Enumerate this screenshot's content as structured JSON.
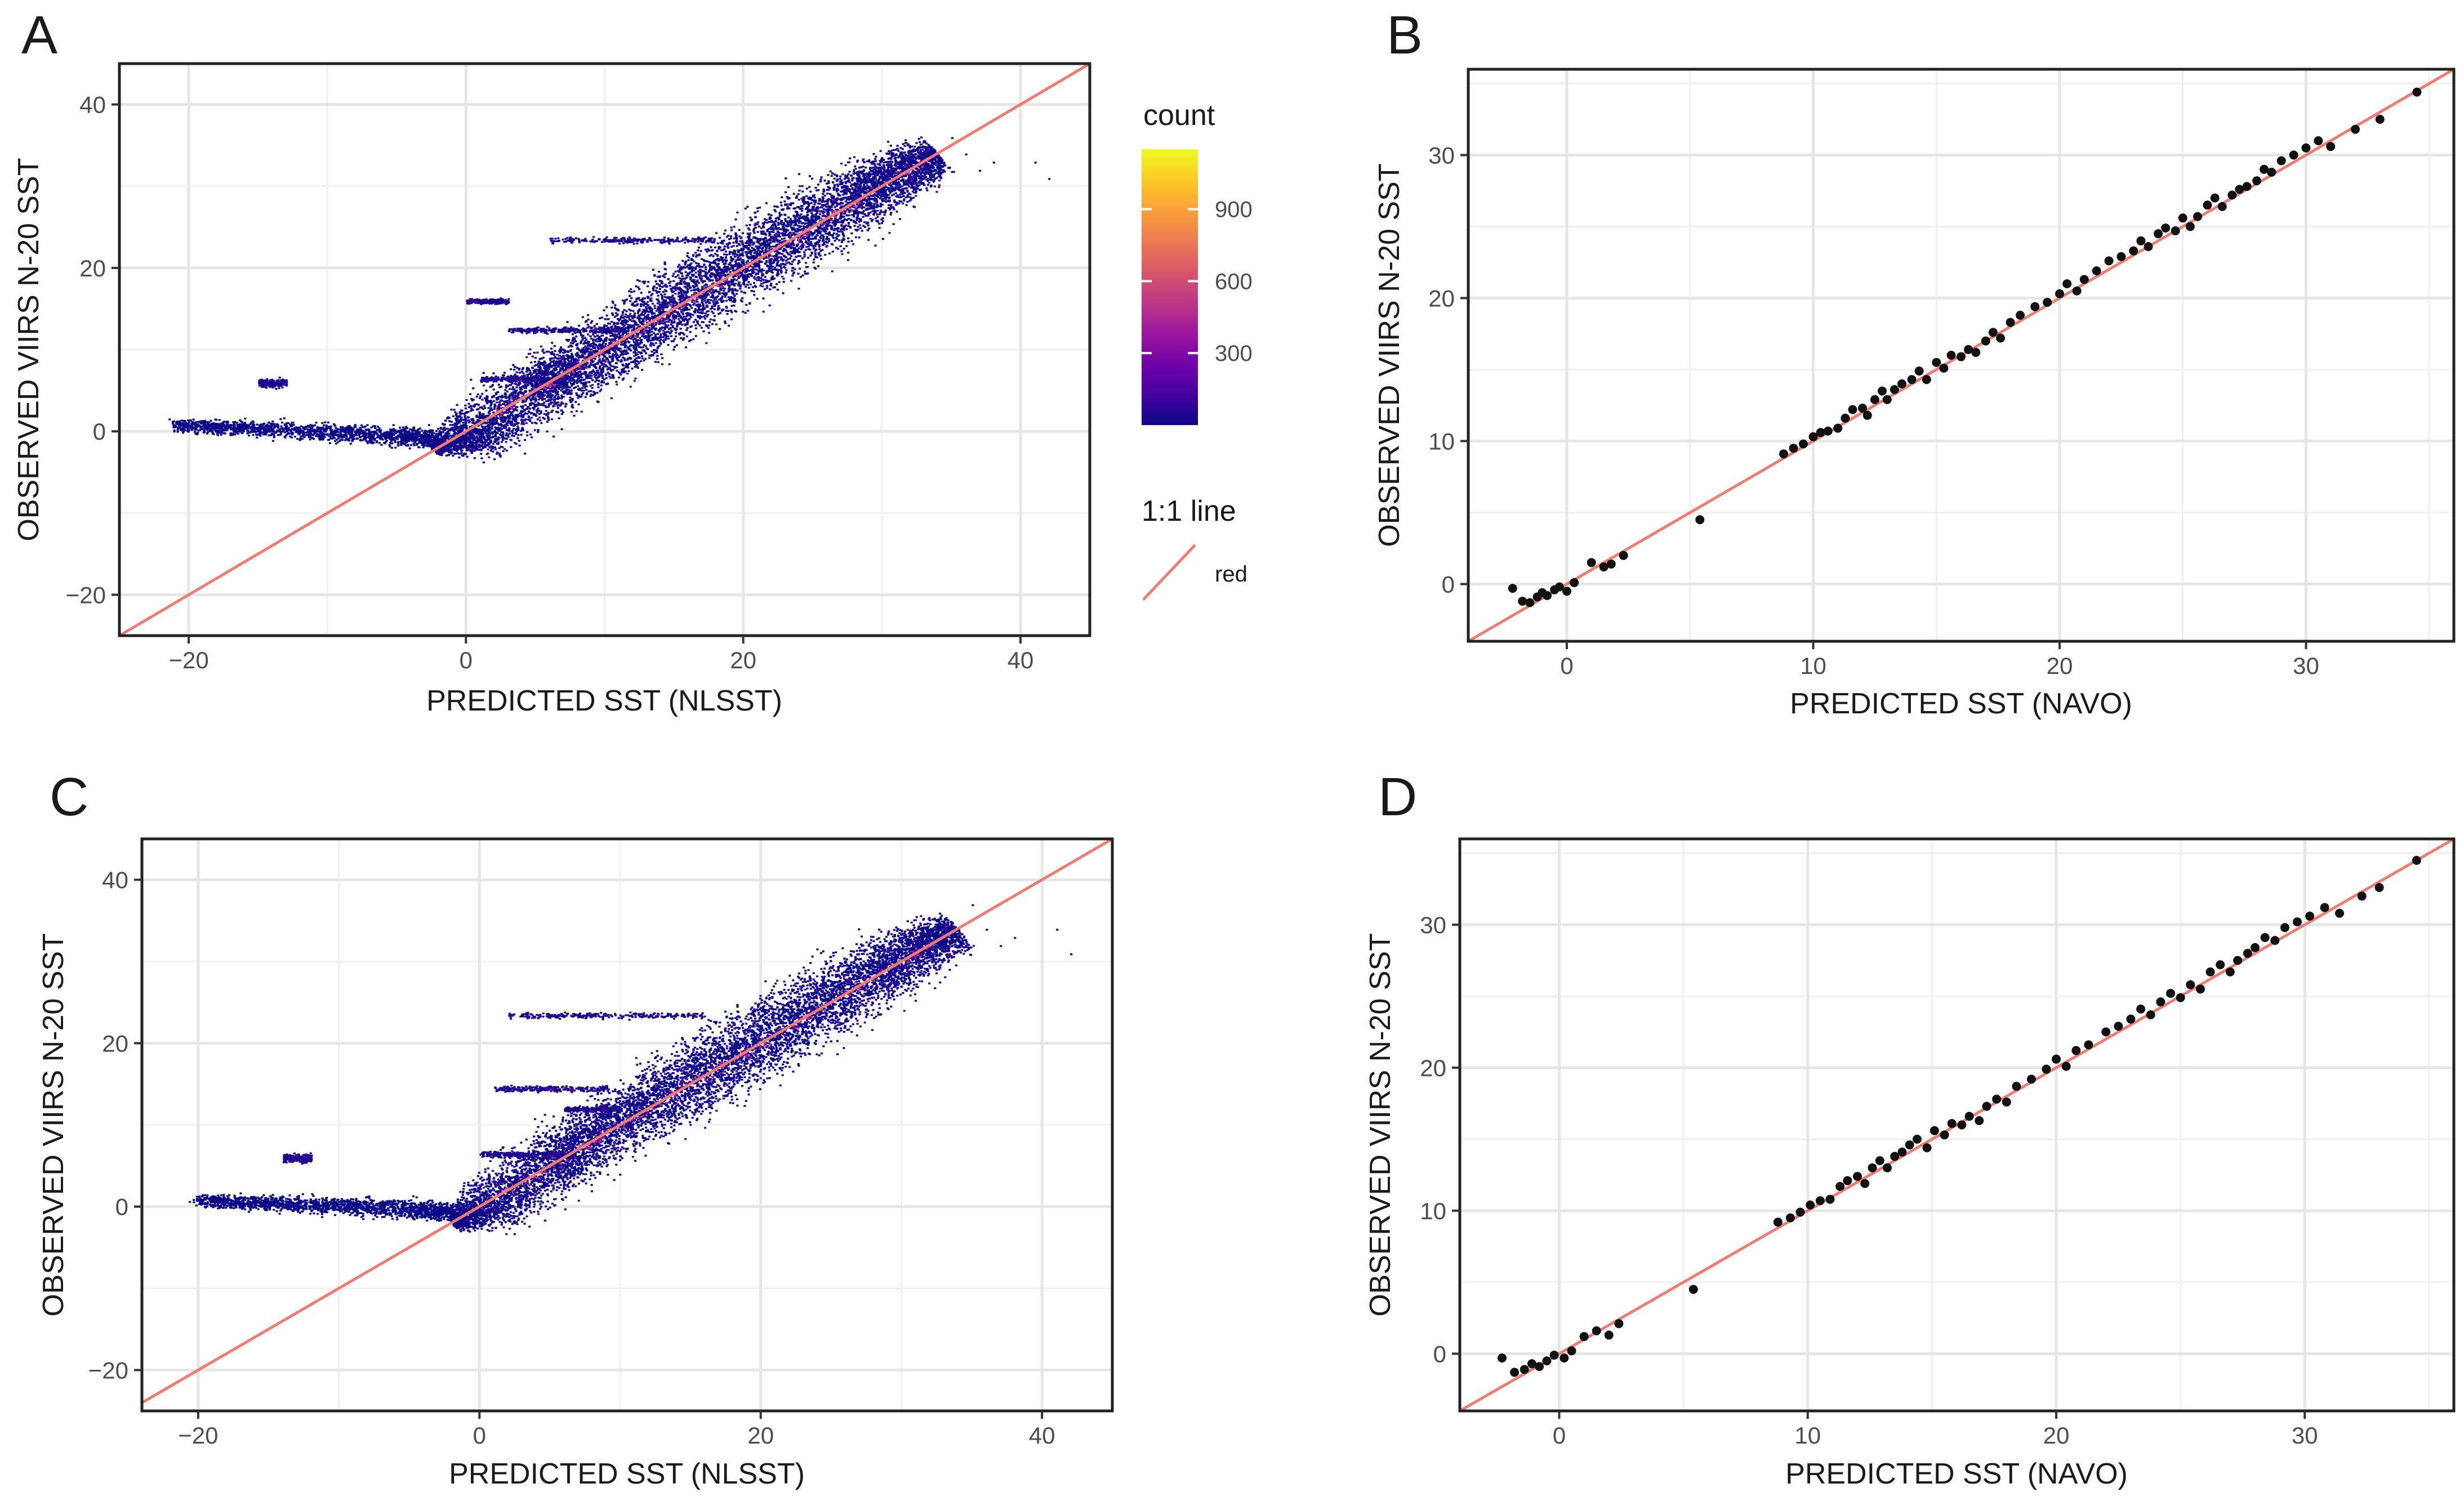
{
  "figure": {
    "panels": [
      {
        "letter": "A"
      },
      {
        "letter": "B"
      },
      {
        "letter": "C"
      },
      {
        "letter": "D"
      }
    ],
    "legend": {
      "count_title": "count",
      "count_ticks": [
        "900",
        "600",
        "300"
      ],
      "count_tick_values": [
        900,
        600,
        300
      ],
      "count_range": [
        0,
        1150
      ],
      "line_title": "1:1 line",
      "line_label": "red",
      "colors": {
        "gradient": [
          "#0d0887",
          "#46039f",
          "#7201a8",
          "#9c179e",
          "#bd3786",
          "#d8576b",
          "#ed7953",
          "#fb9f3a",
          "#fdca26",
          "#f0f921"
        ],
        "one_to_one": "#f07b72",
        "points": "#111111",
        "grid": "#e6e6e6"
      }
    }
  },
  "chart_data": [
    {
      "panel": "A",
      "type": "heatmap",
      "title": "",
      "xlabel": "PREDICTED SST (NLSST)",
      "ylabel": "OBSERVED VIIRS N-20 SST",
      "xlim": [
        -25,
        45
      ],
      "ylim": [
        -25,
        45
      ],
      "xticks": [
        -20,
        0,
        20,
        40
      ],
      "yticks": [
        -20,
        0,
        20,
        40
      ],
      "xtick_labels": [
        "−20",
        "0",
        "20",
        "40"
      ],
      "ytick_labels": [
        "−20",
        "0",
        "20",
        "40"
      ],
      "reference_line": {
        "name": "1:1 line",
        "slope": 1,
        "intercept": 0
      },
      "density_description": "2D bin counts of observed vs predicted SST; dense band along 1:1 line from ~0 to ~34",
      "main_band": [
        [
          -2.5,
          -2,
          0.8
        ],
        [
          1,
          0,
          3
        ],
        [
          5,
          5,
          3
        ],
        [
          8,
          8,
          3
        ],
        [
          12,
          12,
          3.2
        ],
        [
          16,
          16.5,
          3.5
        ],
        [
          20,
          20.5,
          3.5
        ],
        [
          24,
          24.5,
          3.5
        ],
        [
          28,
          28.5,
          3.2
        ],
        [
          31,
          31.5,
          2.6
        ],
        [
          34,
          34,
          2
        ]
      ],
      "cold_tail": [
        [
          -21,
          0.8,
          1
        ],
        [
          -16,
          0.5,
          1.2
        ],
        [
          -10,
          0,
          1.5
        ],
        [
          -5,
          -0.5,
          1.5
        ],
        [
          -2,
          -0.8,
          1.5
        ]
      ],
      "streaks": [
        [
          -15,
          6,
          2,
          0.8
        ],
        [
          1,
          6.5,
          6,
          0.6
        ],
        [
          3,
          12.5,
          8,
          0.6
        ],
        [
          6,
          23.5,
          12,
          0.6
        ],
        [
          0,
          16,
          3,
          0.5
        ]
      ],
      "scatter_outliers": [
        [
          36,
          34
        ],
        [
          38,
          33
        ],
        [
          41,
          33
        ],
        [
          42,
          31
        ],
        [
          37,
          32
        ],
        [
          35,
          36
        ]
      ]
    },
    {
      "panel": "B",
      "type": "scatter",
      "title": "",
      "xlabel": "PREDICTED SST (NAVO)",
      "ylabel": "OBSERVED VIIRS N-20 SST",
      "xlim": [
        -4,
        36
      ],
      "ylim": [
        -4,
        36
      ],
      "xticks": [
        0,
        10,
        20,
        30
      ],
      "yticks": [
        0,
        10,
        20,
        30
      ],
      "xtick_labels": [
        "0",
        "10",
        "20",
        "30"
      ],
      "ytick_labels": [
        "0",
        "10",
        "20",
        "30"
      ],
      "reference_line": {
        "name": "1:1 line",
        "slope": 1,
        "intercept": 0
      },
      "points": [
        [
          -2.2,
          -0.3
        ],
        [
          -1.8,
          -1.2
        ],
        [
          -1.5,
          -1.3
        ],
        [
          -1.2,
          -0.9
        ],
        [
          -1,
          -0.6
        ],
        [
          -0.8,
          -0.8
        ],
        [
          -0.5,
          -0.4
        ],
        [
          -0.3,
          -0.2
        ],
        [
          0,
          -0.5
        ],
        [
          0.3,
          0.1
        ],
        [
          1,
          1.5
        ],
        [
          1.5,
          1.2
        ],
        [
          1.8,
          1.4
        ],
        [
          2.3,
          2
        ],
        [
          5.4,
          4.5
        ],
        [
          8.8,
          9.1
        ],
        [
          9.2,
          9.5
        ],
        [
          9.6,
          9.8
        ],
        [
          10,
          10.3
        ],
        [
          10.3,
          10.6
        ],
        [
          10.6,
          10.7
        ],
        [
          11,
          10.9
        ],
        [
          11.3,
          11.6
        ],
        [
          11.6,
          12.2
        ],
        [
          12,
          12.3
        ],
        [
          12.2,
          11.8
        ],
        [
          12.5,
          12.9
        ],
        [
          12.8,
          13.5
        ],
        [
          13,
          12.9
        ],
        [
          13.3,
          13.6
        ],
        [
          13.6,
          14
        ],
        [
          14,
          14.3
        ],
        [
          14.3,
          14.9
        ],
        [
          14.6,
          14.3
        ],
        [
          15,
          15.5
        ],
        [
          15.3,
          15.1
        ],
        [
          15.6,
          16
        ],
        [
          16,
          15.9
        ],
        [
          16.3,
          16.4
        ],
        [
          16.6,
          16.2
        ],
        [
          17,
          17
        ],
        [
          17.3,
          17.6
        ],
        [
          17.6,
          17.2
        ],
        [
          18,
          18.3
        ],
        [
          18.4,
          18.8
        ],
        [
          19,
          19.4
        ],
        [
          19.5,
          19.7
        ],
        [
          20,
          20.3
        ],
        [
          20.3,
          21
        ],
        [
          20.7,
          20.5
        ],
        [
          21,
          21.3
        ],
        [
          21.5,
          21.9
        ],
        [
          22,
          22.6
        ],
        [
          22.5,
          22.9
        ],
        [
          23,
          23.3
        ],
        [
          23.3,
          24
        ],
        [
          23.6,
          23.6
        ],
        [
          24,
          24.5
        ],
        [
          24.3,
          24.9
        ],
        [
          24.7,
          24.7
        ],
        [
          25,
          25.6
        ],
        [
          25.3,
          25
        ],
        [
          25.6,
          25.7
        ],
        [
          26,
          26.5
        ],
        [
          26.3,
          27
        ],
        [
          26.6,
          26.4
        ],
        [
          27,
          27.2
        ],
        [
          27.3,
          27.6
        ],
        [
          27.6,
          27.8
        ],
        [
          28,
          28.2
        ],
        [
          28.3,
          29
        ],
        [
          28.6,
          28.8
        ],
        [
          29,
          29.6
        ],
        [
          29.5,
          30
        ],
        [
          30,
          30.5
        ],
        [
          30.5,
          31
        ],
        [
          31,
          30.6
        ],
        [
          32,
          31.8
        ],
        [
          33,
          32.5
        ],
        [
          34.5,
          34.4
        ]
      ]
    },
    {
      "panel": "C",
      "type": "heatmap",
      "title": "",
      "xlabel": "PREDICTED SST (NLSST)",
      "ylabel": "OBSERVED VIIRS N-20 SST",
      "xlim": [
        -24,
        45
      ],
      "ylim": [
        -25,
        45
      ],
      "xticks": [
        -20,
        0,
        20,
        40
      ],
      "yticks": [
        -20,
        0,
        20,
        40
      ],
      "xtick_labels": [
        "−20",
        "0",
        "20",
        "40"
      ],
      "ytick_labels": [
        "−20",
        "0",
        "20",
        "40"
      ],
      "reference_line": {
        "name": "1:1 line",
        "slope": 1,
        "intercept": 0
      },
      "density_description": "2D bin counts of observed vs predicted SST; dense band along 1:1 line from ~0 to ~34",
      "main_band": [
        [
          -2,
          -2,
          0.8
        ],
        [
          1,
          0.5,
          3
        ],
        [
          5,
          5,
          3
        ],
        [
          8,
          8.5,
          3
        ],
        [
          12,
          12.5,
          3.2
        ],
        [
          16,
          16.5,
          3.5
        ],
        [
          20,
          20.5,
          3.5
        ],
        [
          24,
          24.5,
          3.5
        ],
        [
          28,
          28.5,
          3.2
        ],
        [
          31,
          31.5,
          2.6
        ],
        [
          34,
          34,
          2
        ]
      ],
      "cold_tail": [
        [
          -20,
          0.8,
          1
        ],
        [
          -15,
          0.5,
          1.2
        ],
        [
          -10,
          0.2,
          1.5
        ],
        [
          -5,
          -0.2,
          1.5
        ],
        [
          -2,
          -0.6,
          1.5
        ]
      ],
      "streaks": [
        [
          -14,
          6,
          2,
          0.8
        ],
        [
          0,
          6.5,
          6,
          0.6
        ],
        [
          1,
          14.5,
          8,
          0.6
        ],
        [
          2,
          23.5,
          14,
          0.6
        ],
        [
          6,
          12,
          4,
          0.5
        ]
      ],
      "scatter_outliers": [
        [
          36,
          34
        ],
        [
          38,
          33
        ],
        [
          41,
          34
        ],
        [
          42,
          31
        ],
        [
          37,
          32
        ],
        [
          35,
          37
        ]
      ]
    },
    {
      "panel": "D",
      "type": "scatter",
      "title": "",
      "xlabel": "PREDICTED SST (NAVO)",
      "ylabel": "OBSERVED VIIRS N-20 SST",
      "xlim": [
        -4,
        36
      ],
      "ylim": [
        -4,
        36
      ],
      "xticks": [
        0,
        10,
        20,
        30
      ],
      "yticks": [
        0,
        10,
        20,
        30
      ],
      "xtick_labels": [
        "0",
        "10",
        "20",
        "30"
      ],
      "ytick_labels": [
        "0",
        "10",
        "20",
        "30"
      ],
      "reference_line": {
        "name": "1:1 line",
        "slope": 1,
        "intercept": 0
      },
      "points": [
        [
          -2.3,
          -0.3
        ],
        [
          -1.8,
          -1.3
        ],
        [
          -1.4,
          -1.1
        ],
        [
          -1.1,
          -0.7
        ],
        [
          -0.8,
          -0.9
        ],
        [
          -0.5,
          -0.5
        ],
        [
          -0.2,
          -0.1
        ],
        [
          0.2,
          -0.3
        ],
        [
          0.5,
          0.2
        ],
        [
          1,
          1.2
        ],
        [
          1.5,
          1.6
        ],
        [
          2,
          1.3
        ],
        [
          2.4,
          2.1
        ],
        [
          5.4,
          4.5
        ],
        [
          8.8,
          9.2
        ],
        [
          9.3,
          9.5
        ],
        [
          9.7,
          9.9
        ],
        [
          10.1,
          10.4
        ],
        [
          10.5,
          10.7
        ],
        [
          10.9,
          10.8
        ],
        [
          11.3,
          11.7
        ],
        [
          11.6,
          12.1
        ],
        [
          12,
          12.4
        ],
        [
          12.3,
          11.9
        ],
        [
          12.6,
          13
        ],
        [
          12.9,
          13.5
        ],
        [
          13.2,
          13
        ],
        [
          13.5,
          13.8
        ],
        [
          13.8,
          14.1
        ],
        [
          14.1,
          14.6
        ],
        [
          14.4,
          15
        ],
        [
          14.8,
          14.4
        ],
        [
          15.1,
          15.6
        ],
        [
          15.5,
          15.3
        ],
        [
          15.8,
          16.1
        ],
        [
          16.2,
          16
        ],
        [
          16.5,
          16.6
        ],
        [
          16.9,
          16.3
        ],
        [
          17.2,
          17.3
        ],
        [
          17.6,
          17.8
        ],
        [
          18,
          17.6
        ],
        [
          18.4,
          18.7
        ],
        [
          19,
          19.2
        ],
        [
          19.6,
          19.9
        ],
        [
          20,
          20.6
        ],
        [
          20.4,
          20.1
        ],
        [
          20.8,
          21.2
        ],
        [
          21.3,
          21.6
        ],
        [
          22,
          22.5
        ],
        [
          22.5,
          22.9
        ],
        [
          23,
          23.4
        ],
        [
          23.4,
          24.1
        ],
        [
          23.8,
          23.7
        ],
        [
          24.2,
          24.6
        ],
        [
          24.6,
          25.2
        ],
        [
          25,
          24.9
        ],
        [
          25.4,
          25.8
        ],
        [
          25.8,
          25.5
        ],
        [
          26.2,
          26.7
        ],
        [
          26.6,
          27.2
        ],
        [
          27,
          26.7
        ],
        [
          27.3,
          27.5
        ],
        [
          27.7,
          28
        ],
        [
          28,
          28.4
        ],
        [
          28.4,
          29.1
        ],
        [
          28.8,
          28.9
        ],
        [
          29.2,
          29.8
        ],
        [
          29.7,
          30.2
        ],
        [
          30.2,
          30.6
        ],
        [
          30.8,
          31.2
        ],
        [
          31.4,
          30.8
        ],
        [
          32.3,
          32
        ],
        [
          33,
          32.6
        ],
        [
          34.5,
          34.5
        ]
      ]
    }
  ]
}
